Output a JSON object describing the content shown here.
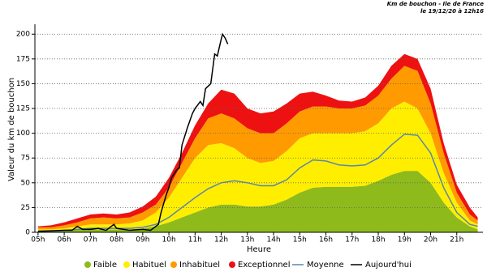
{
  "chart_data": {
    "type": "stacked-area",
    "title": "Km de bouchon - Ile de France",
    "subtitle": "le 19/12/20 à 12h16",
    "x_label": "Heure",
    "y_label": "Valeur du  km de bouchon",
    "x": [
      5,
      5.5,
      6,
      6.5,
      7,
      7.5,
      8,
      8.5,
      9,
      9.5,
      10,
      10.5,
      11,
      11.5,
      12,
      12.5,
      13,
      13.5,
      14,
      14.5,
      15,
      15.5,
      16,
      16.5,
      17,
      17.5,
      18,
      18.5,
      19,
      19.5,
      20,
      20.5,
      21,
      21.5,
      21.8
    ],
    "series": [
      {
        "name": "Faible",
        "color": "#8fba1c",
        "values": [
          2,
          2,
          2,
          3,
          3,
          3,
          3,
          3,
          4,
          6,
          10,
          15,
          20,
          25,
          28,
          28,
          26,
          26,
          28,
          33,
          40,
          45,
          46,
          46,
          46,
          47,
          52,
          58,
          62,
          62,
          50,
          30,
          15,
          6,
          3
        ]
      },
      {
        "name": "Habituel",
        "color": "#ffee00",
        "values": [
          1,
          1,
          2,
          3,
          5,
          5,
          5,
          6,
          8,
          14,
          25,
          40,
          55,
          63,
          62,
          57,
          49,
          44,
          44,
          49,
          55,
          55,
          54,
          54,
          54,
          55,
          58,
          67,
          70,
          63,
          50,
          30,
          15,
          6,
          5
        ]
      },
      {
        "name": "Inhabituel",
        "color": "#ff9a00",
        "values": [
          2,
          2,
          3,
          4,
          6,
          7,
          6,
          6,
          8,
          8,
          10,
          15,
          20,
          27,
          30,
          30,
          30,
          30,
          28,
          28,
          27,
          27,
          27,
          25,
          25,
          26,
          28,
          30,
          36,
          38,
          30,
          20,
          10,
          6,
          4
        ]
      },
      {
        "name": "Exceptionnel",
        "color": "#ee1111",
        "values": [
          1,
          2,
          3,
          4,
          4,
          4,
          4,
          5,
          6,
          8,
          10,
          10,
          13,
          15,
          24,
          25,
          20,
          20,
          22,
          20,
          18,
          15,
          11,
          8,
          7,
          8,
          10,
          13,
          12,
          12,
          15,
          10,
          8,
          7,
          3
        ]
      }
    ],
    "lines": [
      {
        "name": "Moyenne",
        "color": "#5b87a8",
        "values": [
          1,
          1,
          2,
          3,
          4,
          4,
          4,
          4,
          5,
          8,
          15,
          25,
          35,
          44,
          50,
          52,
          50,
          47,
          47,
          53,
          65,
          73,
          72,
          68,
          67,
          68,
          75,
          88,
          99,
          98,
          80,
          45,
          20,
          8,
          6
        ]
      },
      {
        "name": "Aujourd'hui",
        "color": "#000000",
        "x": [
          5,
          6,
          6.3,
          6.5,
          6.7,
          7,
          7.3,
          7.6,
          7.9,
          8,
          8.5,
          9,
          9.3,
          9.6,
          9.7,
          9.9,
          10,
          10.1,
          10.3,
          10.4,
          10.5,
          10.7,
          10.9,
          11,
          11.2,
          11.3,
          11.4,
          11.6,
          11.75,
          11.85,
          12,
          12.05,
          12.15,
          12.25
        ],
        "values": [
          1,
          2,
          2,
          6,
          3,
          3,
          4,
          2,
          8,
          4,
          2,
          3,
          2,
          8,
          20,
          38,
          45,
          55,
          63,
          65,
          88,
          105,
          120,
          125,
          132,
          128,
          145,
          150,
          180,
          178,
          195,
          200,
          196,
          190
        ]
      }
    ],
    "xlim": [
      4.88,
      22
    ],
    "xticks": [
      {
        "value": 5,
        "label": "05h"
      },
      {
        "value": 6,
        "label": "06h"
      },
      {
        "value": 7,
        "label": "07h"
      },
      {
        "value": 8,
        "label": "08h"
      },
      {
        "value": 9,
        "label": "09h"
      },
      {
        "value": 10,
        "label": "10h"
      },
      {
        "value": 11,
        "label": "11h"
      },
      {
        "value": 12,
        "label": "12h"
      },
      {
        "value": 13,
        "label": "13h"
      },
      {
        "value": 14,
        "label": "14h"
      },
      {
        "value": 15,
        "label": "15h"
      },
      {
        "value": 16,
        "label": "16h"
      },
      {
        "value": 17,
        "label": "17h"
      },
      {
        "value": 18,
        "label": "18h"
      },
      {
        "value": 19,
        "label": "19h"
      },
      {
        "value": 20,
        "label": "20h"
      },
      {
        "value": 21,
        "label": "21h"
      }
    ],
    "ylim": [
      0,
      210
    ],
    "yticks": [
      0,
      25,
      50,
      75,
      100,
      125,
      150,
      175,
      200
    ],
    "grid": true
  }
}
